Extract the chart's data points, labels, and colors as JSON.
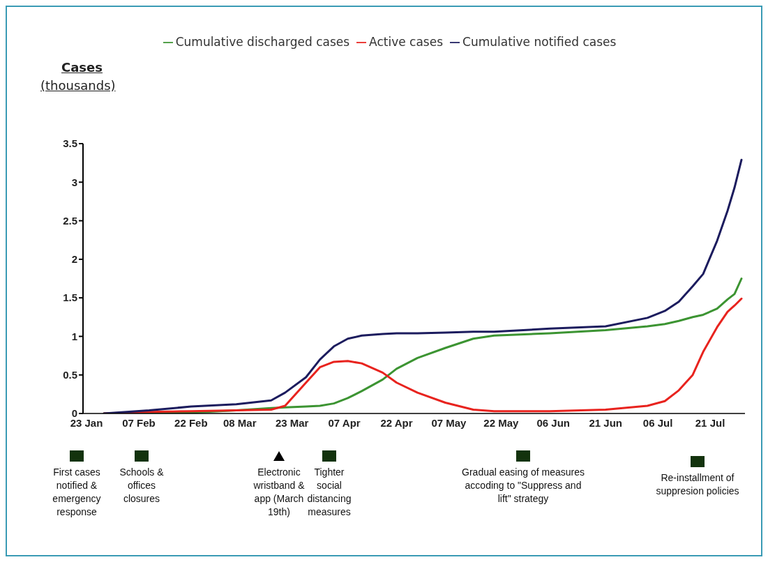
{
  "chart_data": {
    "type": "line",
    "ylabel": "Cases (thousands)",
    "x": [
      "--01-28",
      "--02-10",
      "--02-22",
      "--03-07",
      "--03-17",
      "--03-21",
      "--03-27",
      "--03-31",
      "--04-04",
      "--04-08",
      "--04-12",
      "--04-18",
      "--04-22",
      "--04-28",
      "--05-06",
      "--05-14",
      "--05-20",
      "--06-05",
      "--06-21",
      "--07-03",
      "--07-08",
      "--07-12",
      "--07-16",
      "--07-19",
      "--07-23",
      "--07-26",
      "--07-28",
      "--07-30"
    ],
    "series": [
      {
        "name": "Cumulative discharged cases",
        "color": "#3c9432",
        "values": [
          0,
          0,
          0.01,
          0.04,
          0.07,
          0.08,
          0.09,
          0.1,
          0.13,
          0.2,
          0.29,
          0.44,
          0.58,
          0.72,
          0.85,
          0.97,
          1.01,
          1.04,
          1.08,
          1.13,
          1.16,
          1.2,
          1.25,
          1.28,
          1.36,
          1.48,
          1.55,
          1.75
        ]
      },
      {
        "name": "Active cases",
        "color": "#e8231e",
        "values": [
          0,
          0.02,
          0.03,
          0.04,
          0.05,
          0.1,
          0.4,
          0.6,
          0.67,
          0.68,
          0.65,
          0.53,
          0.4,
          0.27,
          0.14,
          0.05,
          0.03,
          0.03,
          0.05,
          0.1,
          0.16,
          0.3,
          0.5,
          0.8,
          1.12,
          1.32,
          1.4,
          1.49
        ]
      },
      {
        "name": "Cumulative notified cases",
        "color": "#1c1c5e",
        "values": [
          0,
          0.04,
          0.09,
          0.12,
          0.17,
          0.27,
          0.47,
          0.7,
          0.87,
          0.97,
          1.01,
          1.03,
          1.04,
          1.04,
          1.05,
          1.06,
          1.06,
          1.1,
          1.13,
          1.24,
          1.33,
          1.45,
          1.65,
          1.81,
          2.24,
          2.63,
          2.93,
          3.29
        ]
      }
    ],
    "xlim": [
      "--01-22",
      "--07-31"
    ],
    "xticks": [
      {
        "value": "--01-23",
        "label": "23 Jan"
      },
      {
        "value": "--02-07",
        "label": "07 Feb"
      },
      {
        "value": "--02-22",
        "label": "22 Feb"
      },
      {
        "value": "--03-08",
        "label": "08 Mar"
      },
      {
        "value": "--03-23",
        "label": "23 Mar"
      },
      {
        "value": "--04-07",
        "label": "07 Apr"
      },
      {
        "value": "--04-22",
        "label": "22 Apr"
      },
      {
        "value": "--05-07",
        "label": "07 May"
      },
      {
        "value": "--05-22",
        "label": "22 May"
      },
      {
        "value": "--06-06",
        "label": "06 Jun"
      },
      {
        "value": "--06-21",
        "label": "21 Jun"
      },
      {
        "value": "--07-06",
        "label": "06 Jul"
      },
      {
        "value": "--07-21",
        "label": "21 Jul"
      }
    ],
    "ylim": [
      0,
      3.5
    ],
    "yticks": [
      0,
      0.5,
      1,
      1.5,
      2,
      2.5,
      3,
      3.5
    ],
    "grid": false,
    "legend": "top",
    "marker": "none",
    "line_style": "solid",
    "annotations": [
      "First cases notified & emergency response",
      "Schools & offices closures",
      "Electronic wristband & app (March 19th)",
      "Tighter social distancing measures",
      "Gradual easing of measures accoding to \"Suppress and lift\" strategy",
      "Re-installment of suppresion policies"
    ]
  }
}
